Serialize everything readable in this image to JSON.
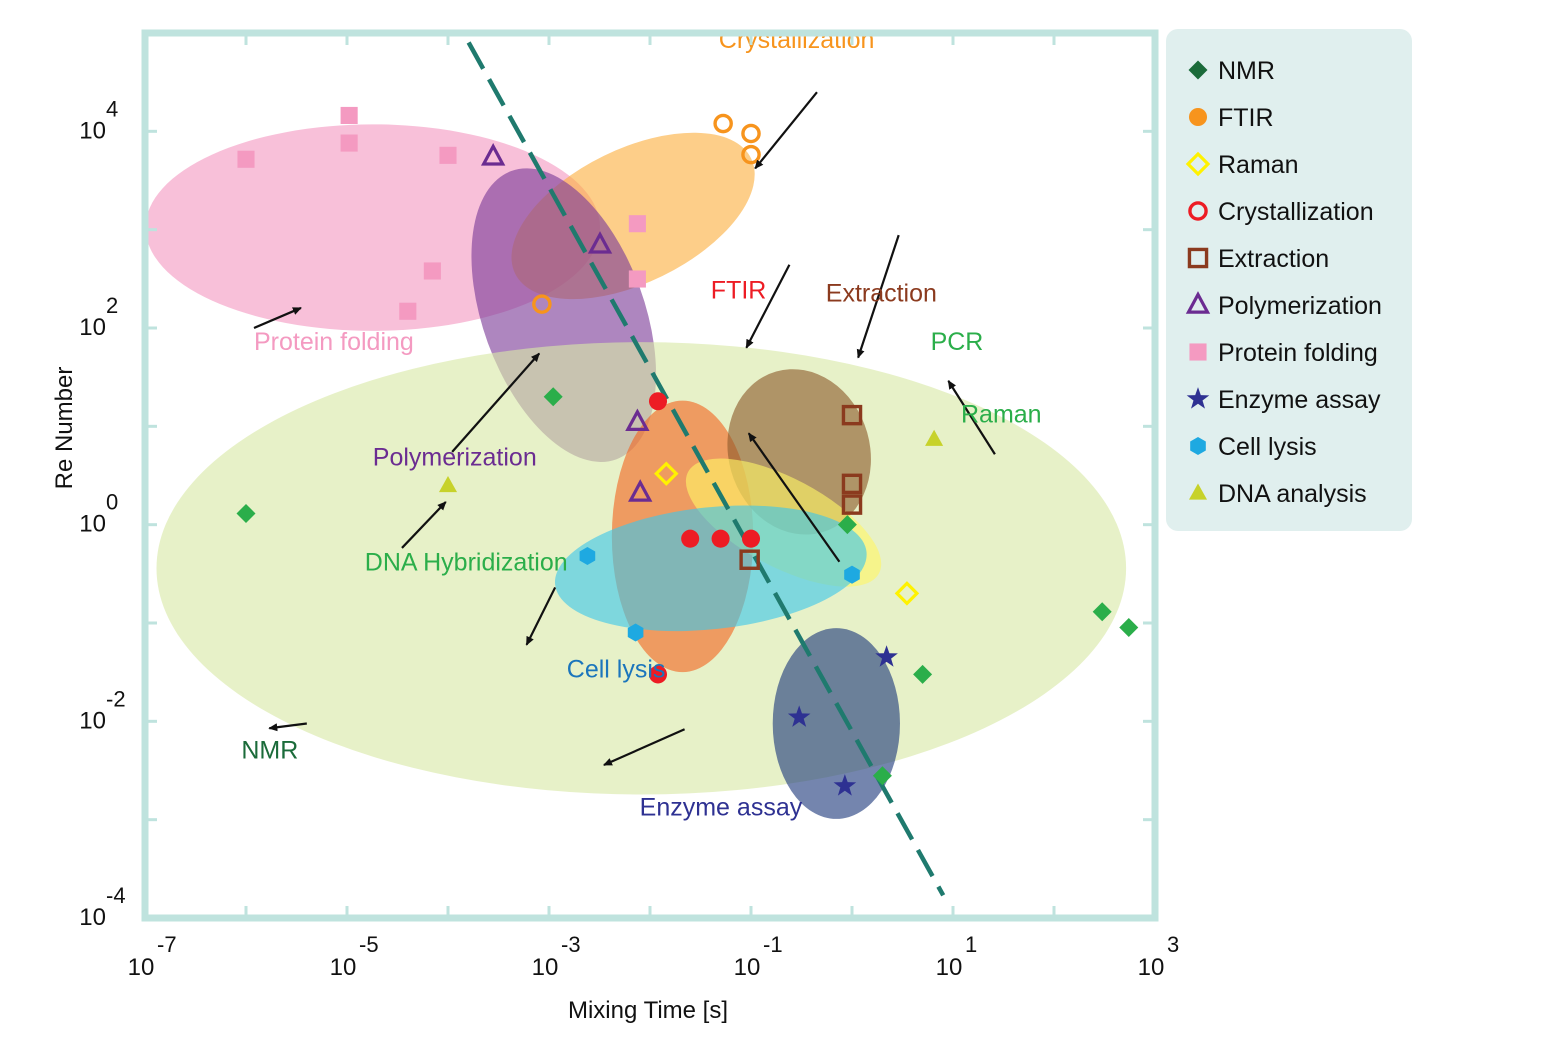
{
  "chart_data": {
    "type": "scatter",
    "xlabel": "Mixing Time [s]",
    "ylabel": "Re Number",
    "xscale": "log",
    "yscale": "log",
    "xlim": [
      1e-07,
      1000
    ],
    "ylim": [
      0.0001,
      100000
    ],
    "grid": false,
    "legend_position": "right",
    "x_ticks": [
      {
        "base": "10",
        "exp": "-7",
        "value": 1e-07
      },
      {
        "base": "10",
        "exp": "-5",
        "value": 1e-05
      },
      {
        "base": "10",
        "exp": "-3",
        "value": 0.001
      },
      {
        "base": "10",
        "exp": "-1",
        "value": 0.1
      },
      {
        "base": "10",
        "exp": "1",
        "value": 10
      },
      {
        "base": "10",
        "exp": "3",
        "value": 1000
      }
    ],
    "y_ticks": [
      {
        "base": "10",
        "exp": "-4",
        "value": 0.0001
      },
      {
        "base": "10",
        "exp": "-2",
        "value": 0.01
      },
      {
        "base": "10",
        "exp": "0",
        "value": 1
      },
      {
        "base": "10",
        "exp": "2",
        "value": 100
      },
      {
        "base": "10",
        "exp": "4",
        "value": 10000
      }
    ],
    "trend_line": {
      "style": "dashed",
      "color": "#1f7a6e",
      "points": [
        [
          0.00016,
          80000
        ],
        [
          8,
          0.00017
        ]
      ]
    },
    "series": [
      {
        "name": "NMR",
        "marker": "diamond",
        "fill": "#2bae4a",
        "legend_color": "#1b6b3a",
        "points": [
          [
            1e-06,
            1.3
          ],
          [
            0.0011,
            20
          ],
          [
            0.9,
            1
          ],
          [
            5,
            0.03
          ],
          [
            2,
            0.0028
          ],
          [
            300,
            0.13
          ],
          [
            550,
            0.09
          ]
        ]
      },
      {
        "name": "FTIR",
        "marker": "circle-filled",
        "fill": "#ed1c24",
        "legend_color": "#f7941d",
        "points": [
          [
            0.012,
            18
          ],
          [
            0.025,
            0.72
          ],
          [
            0.05,
            0.72
          ],
          [
            0.1,
            0.72
          ],
          [
            0.012,
            0.03
          ]
        ]
      },
      {
        "name": "Raman",
        "marker": "diamond-open",
        "fill": "#fff200",
        "points": [
          [
            0.0145,
            3.3
          ],
          [
            3.5,
            0.2
          ]
        ]
      },
      {
        "name": "Crystallization",
        "marker": "circle-open",
        "fill": "#f7941d",
        "legend_color": "#ed1c24",
        "points": [
          [
            0.053,
            12000
          ],
          [
            0.1,
            9500
          ],
          [
            0.1,
            5800
          ],
          [
            0.00085,
            175
          ]
        ]
      },
      {
        "name": "Extraction",
        "marker": "square-open",
        "fill": "#8b3a1e",
        "points": [
          [
            0.097,
            0.44
          ],
          [
            1,
            13
          ],
          [
            1,
            2.6
          ],
          [
            1,
            1.6
          ]
        ]
      },
      {
        "name": "Polymerization",
        "marker": "triangle-open",
        "fill": "#6b2c91",
        "points": [
          [
            0.00028,
            5500
          ],
          [
            0.0032,
            700
          ],
          [
            0.0075,
            11
          ],
          [
            0.008,
            2.1
          ]
        ]
      },
      {
        "name": "Protein folding",
        "marker": "square",
        "fill": "#f49ac1",
        "points": [
          [
            1e-06,
            5200
          ],
          [
            1.05e-05,
            14500
          ],
          [
            1.05e-05,
            7600
          ],
          [
            0.0001,
            5700
          ],
          [
            0.0075,
            1150
          ],
          [
            0.0075,
            315
          ],
          [
            4e-05,
            148
          ],
          [
            7e-05,
            380
          ]
        ]
      },
      {
        "name": "Enzyme assay",
        "marker": "star",
        "fill": "#2e3192",
        "points": [
          [
            0.3,
            0.011
          ],
          [
            0.85,
            0.0022
          ],
          [
            2.2,
            0.045
          ]
        ]
      },
      {
        "name": "Cell lysis",
        "marker": "hexagon",
        "fill": "#1ea9e1",
        "points": [
          [
            0.0024,
            0.48
          ],
          [
            0.0072,
            0.08
          ],
          [
            1,
            0.31
          ]
        ]
      },
      {
        "name": "DNA analysis",
        "marker": "triangle",
        "fill": "#c7d22a",
        "points": [
          [
            0.0001,
            2.5
          ],
          [
            6.5,
            7.4
          ]
        ]
      }
    ],
    "regions": [
      {
        "name": "Protein folding",
        "label": "Protein folding",
        "color": "#f49ac1",
        "cx": 1.8e-05,
        "cy": 1050,
        "rx_decades": 2.25,
        "ry_decades": 1.05,
        "rotate": 0
      },
      {
        "name": "Crystallization",
        "label": "Crystallization",
        "color": "#fbb040",
        "cx": 0.0068,
        "cy": 1380,
        "rx_decades": 1.3,
        "ry_decades": 0.68,
        "rotate": -26
      },
      {
        "name": "Polymerization",
        "label": "Polymerization",
        "color": "#7d3c98",
        "cx": 0.0014,
        "cy": 135,
        "rx_decades": 0.8,
        "ry_decades": 1.56,
        "rotate": -20
      },
      {
        "name": "NMR",
        "label": "NMR",
        "color": "#d9e8a6",
        "cx": 0.0082,
        "cy": 0.36,
        "rx_decades": 4.8,
        "ry_decades": 2.3,
        "rotate": 0
      },
      {
        "name": "FTIR",
        "label": "FTIR",
        "color": "#f26522",
        "cx": 0.021,
        "cy": 0.76,
        "rx_decades": 0.7,
        "ry_decades": 1.38,
        "rotate": 0
      },
      {
        "name": "Extraction",
        "label": "Extraction",
        "color": "#8c5a2b",
        "cx": 0.3,
        "cy": 5.5,
        "rx_decades": 0.7,
        "ry_decades": 0.85,
        "rotate": -16
      },
      {
        "name": "Raman",
        "label": "Raman",
        "color": "#fff566",
        "cx": 0.21,
        "cy": 1.05,
        "rx_decades": 1.07,
        "ry_decades": 0.45,
        "rotate": 28
      },
      {
        "name": "Cell lysis",
        "label": "Cell lysis",
        "color": "#3ec6ea",
        "cx": 0.04,
        "cy": 0.36,
        "rx_decades": 1.55,
        "ry_decades": 0.62,
        "rotate": -6
      },
      {
        "name": "Enzyme assay",
        "label": "Enzyme assay",
        "color": "#1f3a7d",
        "cx": 0.7,
        "cy": 0.0095,
        "rx_decades": 0.63,
        "ry_decades": 0.97,
        "rotate": 0
      }
    ],
    "annotations": [
      {
        "text": "Crystallization",
        "color": "#f7941d",
        "x": 0.048,
        "y": 70000,
        "arrow_to": [
          0.11,
          4200
        ],
        "arrow_from": [
          0.45,
          25000
        ]
      },
      {
        "text": "Protein folding",
        "color": "#f49ac1",
        "x": 1.2e-06,
        "y": 60,
        "arrow_to": [
          3.5e-06,
          160
        ],
        "arrow_from": [
          1.2e-06,
          100
        ]
      },
      {
        "text": "Polymerization",
        "color": "#6b2c91",
        "x": 1.8e-05,
        "y": 4,
        "arrow_to": [
          0.0008,
          55
        ],
        "arrow_from": [
          0.00011,
          5.5
        ]
      },
      {
        "text": "DNA Hybridization",
        "color": "#2bae4a",
        "x": 1.5e-05,
        "y": 0.34,
        "arrow_to": [
          9.5e-05,
          1.7
        ],
        "arrow_from": [
          3.5e-05,
          0.58
        ]
      },
      {
        "text": "FTIR",
        "color": "#ed1c24",
        "x": 0.04,
        "y": 200,
        "arrow_to": [
          0.09,
          63
        ],
        "arrow_from": [
          0.24,
          440
        ]
      },
      {
        "text": "Extraction",
        "color": "#8b3a1e",
        "x": 0.55,
        "y": 185,
        "arrow_to": [
          1.15,
          50
        ],
        "arrow_from": [
          2.9,
          880
        ]
      },
      {
        "text": "PCR",
        "color": "#2bae4a",
        "x": 6,
        "y": 60,
        "arrow_to": [
          9,
          29
        ],
        "arrow_from": [
          26,
          5.2
        ]
      },
      {
        "text": "Raman",
        "color": "#2bae4a",
        "x": 12,
        "y": 11,
        "arrow_to": [
          0.095,
          8.5
        ],
        "arrow_from": [
          0.75,
          0.42
        ]
      },
      {
        "text": "Cell lysis",
        "color": "#1b75bc",
        "x": 0.0015,
        "y": 0.028,
        "arrow_to": [
          0.0006,
          0.06
        ],
        "arrow_from": [
          0.00115,
          0.23
        ]
      },
      {
        "text": "Enzyme assay",
        "color": "#2e3192",
        "x": 0.0079,
        "y": 0.0011,
        "arrow_to": [
          0.0035,
          0.0036
        ],
        "arrow_from": [
          0.022,
          0.0083
        ]
      },
      {
        "text": "NMR",
        "color": "#1b6b3a",
        "x": 9e-07,
        "y": 0.0042,
        "arrow_to": [
          1.7e-06,
          0.0085
        ],
        "arrow_from": [
          4e-06,
          0.0095
        ]
      }
    ]
  }
}
